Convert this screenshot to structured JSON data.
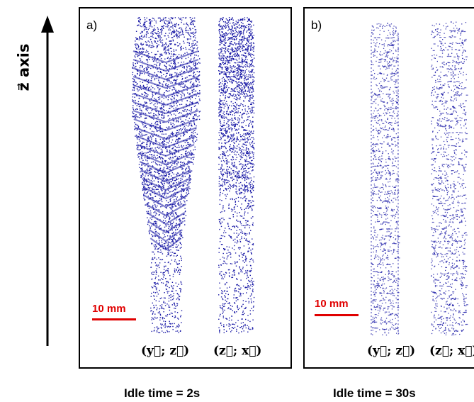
{
  "axis": {
    "label": "z⃗ axis",
    "icon": "up-arrow-icon"
  },
  "panels": [
    {
      "letter": "a)",
      "scale_label": "10 mm",
      "projection_left": "(y⃗; z⃗)",
      "projection_right": "(z⃗; x⃗)",
      "caption": "Idle time = 2s"
    },
    {
      "letter": "b)",
      "scale_label": "10 mm",
      "projection_left": "(y⃗; z⃗)",
      "projection_right": "(z⃗; x⃗)",
      "caption": "Idle time = 30s"
    }
  ],
  "colors": {
    "point_cloud": "#1a1aa6",
    "scale_bar": "#e00000",
    "frame": "#000000"
  }
}
